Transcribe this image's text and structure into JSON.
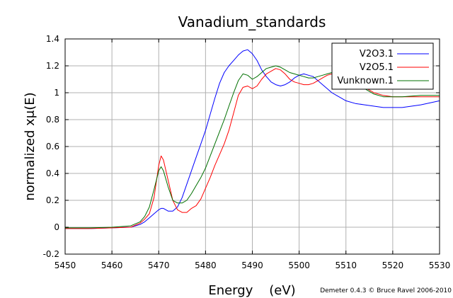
{
  "chart_data": {
    "type": "line",
    "title": "Vanadium_standards",
    "xlabel": "Energy    (eV)",
    "ylabel": "normalized xμ(E)",
    "credit": "Demeter 0.4.3 © Bruce Ravel 2006-2010",
    "xlim": [
      5450,
      5530
    ],
    "ylim": [
      -0.2,
      1.4
    ],
    "xticks": [
      5450,
      5460,
      5470,
      5480,
      5490,
      5500,
      5510,
      5520,
      5530
    ],
    "yticks": [
      -0.2,
      0,
      0.2,
      0.4,
      0.6,
      0.8,
      1,
      1.2,
      1.4
    ],
    "xtick_labels": [
      "5450",
      "5460",
      "5470",
      "5480",
      "5490",
      "5500",
      "5510",
      "5520",
      "5530"
    ],
    "ytick_labels": [
      "-0.2",
      "0",
      "0.2",
      "0.4",
      "0.6",
      "0.8",
      "1",
      "1.2",
      "1.4"
    ],
    "grid": true,
    "legend_position": "top-right",
    "series": [
      {
        "name": "V2O3.1",
        "color": "#0000ff",
        "x": [
          5450,
          5455,
          5460,
          5464,
          5466,
          5467,
          5468,
          5469,
          5470,
          5470.5,
          5471,
          5472,
          5473,
          5474,
          5475,
          5476,
          5477,
          5478,
          5479,
          5480,
          5481,
          5482,
          5483,
          5484,
          5485,
          5486,
          5487,
          5488,
          5489,
          5490,
          5491,
          5492,
          5493,
          5494,
          5495,
          5496,
          5497,
          5498,
          5499,
          5500,
          5501,
          5502,
          5503,
          5504,
          5505,
          5506,
          5507,
          5508,
          5509,
          5510,
          5512,
          5514,
          5516,
          5518,
          5520,
          5522,
          5524,
          5526,
          5528,
          5530
        ],
        "y": [
          -0.01,
          -0.01,
          -0.005,
          0.0,
          0.02,
          0.04,
          0.07,
          0.1,
          0.13,
          0.14,
          0.14,
          0.12,
          0.12,
          0.15,
          0.22,
          0.32,
          0.42,
          0.52,
          0.62,
          0.72,
          0.84,
          0.96,
          1.07,
          1.15,
          1.2,
          1.24,
          1.28,
          1.31,
          1.32,
          1.29,
          1.24,
          1.17,
          1.12,
          1.08,
          1.06,
          1.05,
          1.06,
          1.08,
          1.11,
          1.13,
          1.14,
          1.13,
          1.12,
          1.09,
          1.06,
          1.03,
          1.0,
          0.98,
          0.96,
          0.94,
          0.92,
          0.91,
          0.9,
          0.89,
          0.89,
          0.89,
          0.9,
          0.91,
          0.925,
          0.94
        ]
      },
      {
        "name": "V2O5.1",
        "color": "#ff0000",
        "x": [
          5450,
          5455,
          5460,
          5464,
          5466,
          5467,
          5468,
          5469,
          5469.5,
          5470,
          5470.5,
          5471,
          5472,
          5473,
          5474,
          5475,
          5476,
          5477,
          5478,
          5479,
          5480,
          5481,
          5482,
          5483,
          5484,
          5485,
          5486,
          5487,
          5488,
          5489,
          5490,
          5491,
          5492,
          5493,
          5494,
          5495,
          5496,
          5497,
          5498,
          5499,
          5500,
          5501,
          5502,
          5503,
          5504,
          5505,
          5506,
          5507,
          5508,
          5509,
          5510,
          5512,
          5514,
          5516,
          5518,
          5520,
          5522,
          5524,
          5526,
          5528,
          5530
        ],
        "y": [
          -0.01,
          -0.01,
          -0.005,
          0.0,
          0.03,
          0.06,
          0.1,
          0.22,
          0.34,
          0.46,
          0.53,
          0.5,
          0.35,
          0.2,
          0.13,
          0.11,
          0.11,
          0.14,
          0.16,
          0.21,
          0.29,
          0.37,
          0.46,
          0.54,
          0.62,
          0.72,
          0.85,
          0.98,
          1.04,
          1.05,
          1.03,
          1.05,
          1.1,
          1.14,
          1.16,
          1.18,
          1.17,
          1.14,
          1.1,
          1.08,
          1.07,
          1.06,
          1.06,
          1.07,
          1.09,
          1.11,
          1.13,
          1.14,
          1.15,
          1.14,
          1.13,
          1.09,
          1.04,
          1.0,
          0.98,
          0.97,
          0.97,
          0.97,
          0.97,
          0.97,
          0.97
        ]
      },
      {
        "name": "Vunknown.1",
        "color": "#007000",
        "x": [
          5450,
          5455,
          5460,
          5464,
          5466,
          5467,
          5468,
          5469,
          5470,
          5470.5,
          5471,
          5472,
          5473,
          5474,
          5475,
          5476,
          5477,
          5478,
          5479,
          5480,
          5481,
          5482,
          5483,
          5484,
          5485,
          5486,
          5487,
          5488,
          5489,
          5490,
          5491,
          5492,
          5493,
          5494,
          5495,
          5496,
          5497,
          5498,
          5499,
          5500,
          5501,
          5502,
          5503,
          5504,
          5505,
          5506,
          5507,
          5508,
          5509,
          5510,
          5512,
          5514,
          5516,
          5518,
          5520,
          5522,
          5524,
          5526,
          5528,
          5530
        ],
        "y": [
          -0.005,
          -0.005,
          0.0,
          0.01,
          0.04,
          0.08,
          0.15,
          0.28,
          0.42,
          0.45,
          0.42,
          0.3,
          0.2,
          0.18,
          0.18,
          0.2,
          0.25,
          0.31,
          0.37,
          0.44,
          0.53,
          0.62,
          0.71,
          0.8,
          0.9,
          1.0,
          1.09,
          1.14,
          1.13,
          1.1,
          1.12,
          1.15,
          1.18,
          1.19,
          1.2,
          1.19,
          1.17,
          1.15,
          1.14,
          1.13,
          1.12,
          1.11,
          1.11,
          1.12,
          1.13,
          1.14,
          1.15,
          1.15,
          1.14,
          1.12,
          1.08,
          1.03,
          0.99,
          0.97,
          0.97,
          0.97,
          0.975,
          0.98,
          0.98,
          0.98
        ]
      }
    ]
  }
}
